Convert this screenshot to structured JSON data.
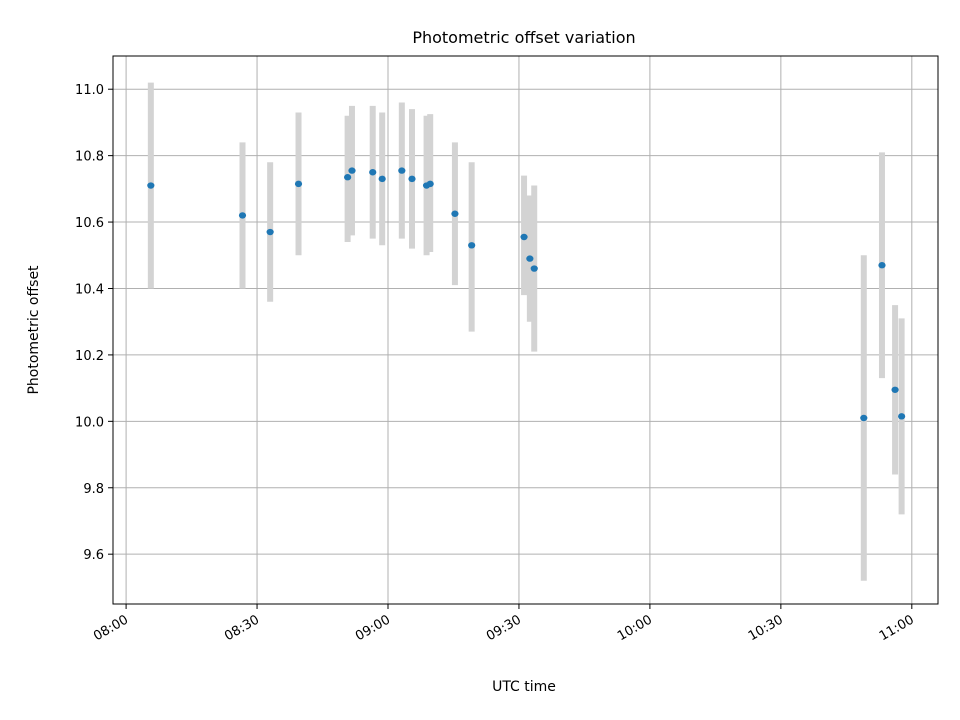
{
  "chart_data": {
    "type": "scatter",
    "title": "Photometric offset variation",
    "xlabel": "UTC time",
    "ylabel": "Photometric offset",
    "x_axis": "time",
    "xlim": [
      "07:57",
      "11:06"
    ],
    "ylim": [
      9.45,
      11.1
    ],
    "xticks": [
      "08:00",
      "08:30",
      "09:00",
      "09:30",
      "10:00",
      "10:30",
      "11:00"
    ],
    "yticks": [
      "9.6",
      "9.8",
      "10.0",
      "10.2",
      "10.4",
      "10.6",
      "10.8",
      "11.0"
    ],
    "grid": true,
    "colors": {
      "point": "#1f77b4",
      "errorbar": "#d3d3d3"
    },
    "series": [
      {
        "points": [
          {
            "t": "08:05:40",
            "y": 10.71,
            "lo": 10.4,
            "hi": 11.02
          },
          {
            "t": "08:26:40",
            "y": 10.62,
            "lo": 10.4,
            "hi": 10.84
          },
          {
            "t": "08:33:00",
            "y": 10.57,
            "lo": 10.36,
            "hi": 10.78
          },
          {
            "t": "08:39:30",
            "y": 10.715,
            "lo": 10.5,
            "hi": 10.93
          },
          {
            "t": "08:50:45",
            "y": 10.735,
            "lo": 10.54,
            "hi": 10.92
          },
          {
            "t": "08:51:45",
            "y": 10.755,
            "lo": 10.56,
            "hi": 10.95
          },
          {
            "t": "08:56:30",
            "y": 10.75,
            "lo": 10.55,
            "hi": 10.95
          },
          {
            "t": "08:58:40",
            "y": 10.73,
            "lo": 10.53,
            "hi": 10.93
          },
          {
            "t": "09:03:10",
            "y": 10.755,
            "lo": 10.55,
            "hi": 10.96
          },
          {
            "t": "09:05:30",
            "y": 10.73,
            "lo": 10.52,
            "hi": 10.94
          },
          {
            "t": "09:08:50",
            "y": 10.71,
            "lo": 10.5,
            "hi": 10.92
          },
          {
            "t": "09:09:40",
            "y": 10.715,
            "lo": 10.51,
            "hi": 10.925
          },
          {
            "t": "09:15:20",
            "y": 10.625,
            "lo": 10.41,
            "hi": 10.84
          },
          {
            "t": "09:19:10",
            "y": 10.53,
            "lo": 10.27,
            "hi": 10.78
          },
          {
            "t": "09:31:10",
            "y": 10.555,
            "lo": 10.38,
            "hi": 10.74
          },
          {
            "t": "09:32:30",
            "y": 10.49,
            "lo": 10.3,
            "hi": 10.68
          },
          {
            "t": "09:33:30",
            "y": 10.46,
            "lo": 10.21,
            "hi": 10.71
          },
          {
            "t": "10:49:00",
            "y": 10.01,
            "lo": 9.52,
            "hi": 10.5
          },
          {
            "t": "10:53:10",
            "y": 10.47,
            "lo": 10.13,
            "hi": 10.81
          },
          {
            "t": "10:56:10",
            "y": 10.095,
            "lo": 9.84,
            "hi": 10.35
          },
          {
            "t": "10:57:40",
            "y": 10.015,
            "lo": 9.72,
            "hi": 10.31
          }
        ]
      }
    ]
  }
}
